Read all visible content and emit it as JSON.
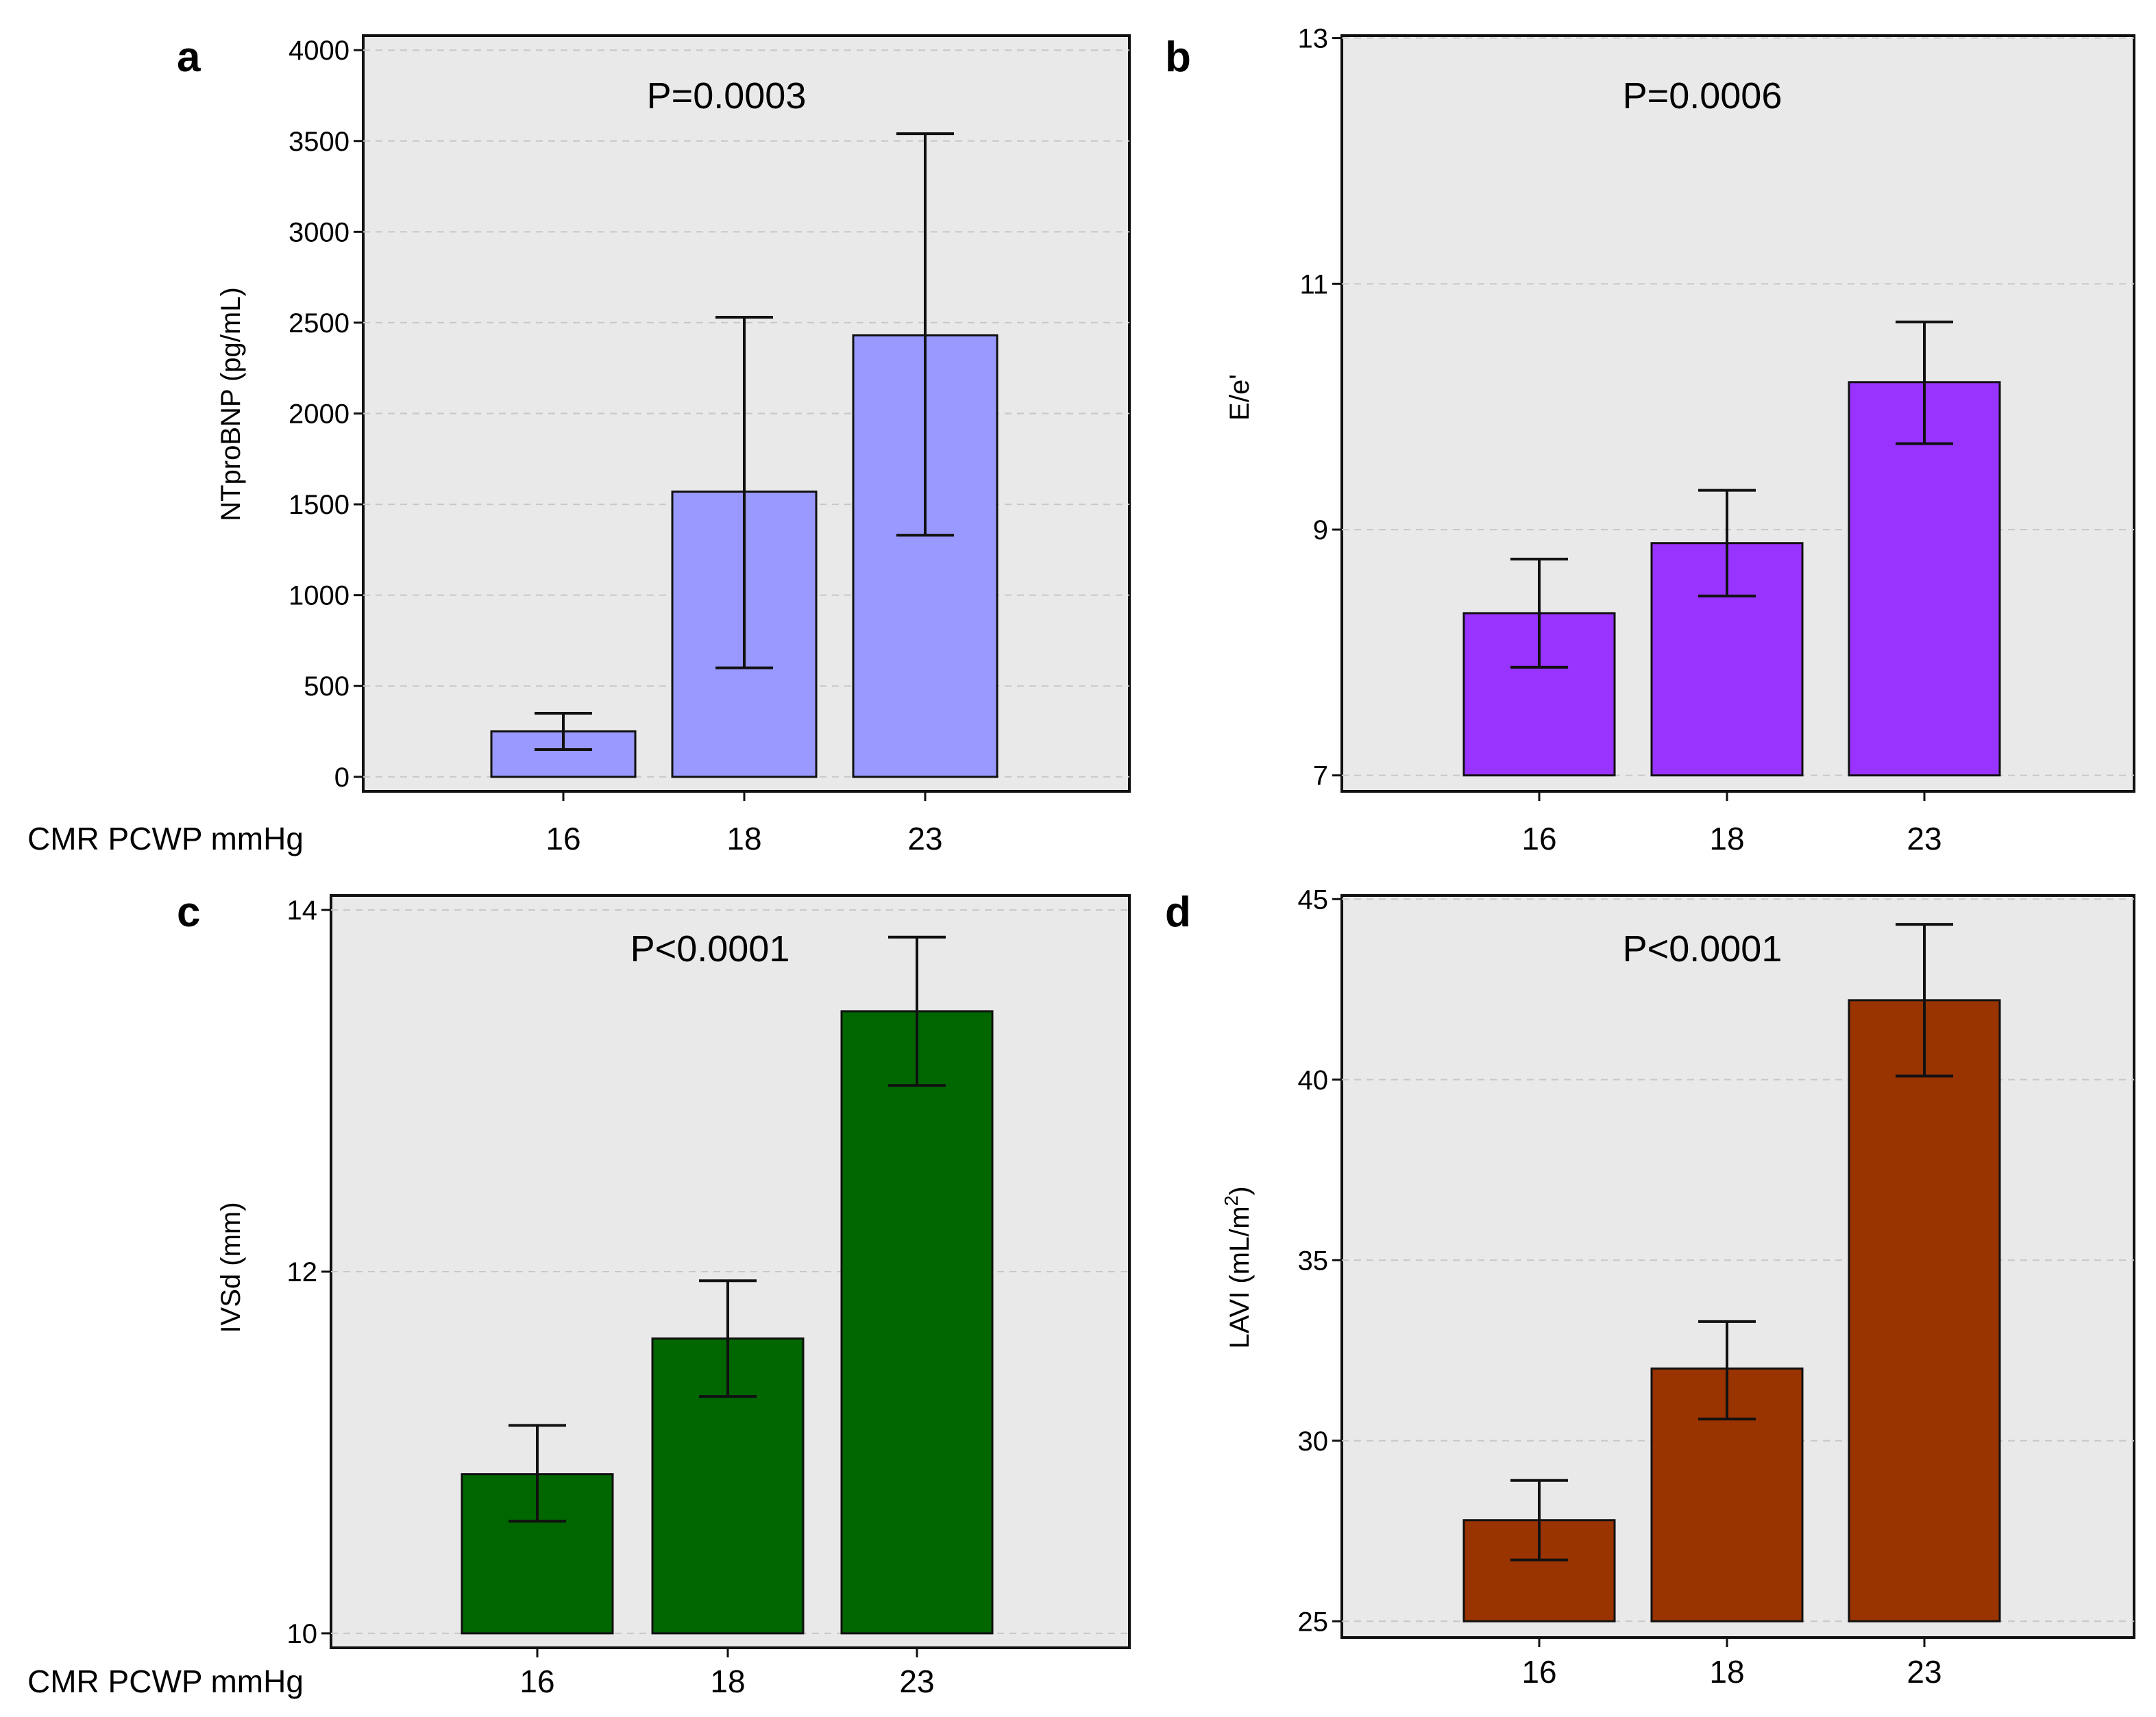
{
  "figure": {
    "xaxis_title": "CMR PCWP mmHg"
  },
  "chart_data": [
    {
      "panel": "a",
      "type": "bar",
      "annotation": "P=0.0003",
      "ylabel": "NTproBNP (pg/mL)",
      "xlabel": "CMR PCWP mmHg",
      "categories": [
        "16",
        "18",
        "23"
      ],
      "values": [
        250,
        1570,
        2430
      ],
      "error_low": [
        150,
        600,
        1330
      ],
      "error_high": [
        350,
        2530,
        3540
      ],
      "ylim": [
        -80,
        4080
      ],
      "yticks": [
        0,
        500,
        1000,
        1500,
        2000,
        2500,
        3000,
        3500,
        4000
      ],
      "ytick_labels": [
        "0",
        "500",
        "1000",
        "1500",
        "2000",
        "2500",
        "3000",
        "3500",
        "4000"
      ],
      "bar_color": "#9999ff",
      "grid": true
    },
    {
      "panel": "b",
      "type": "bar",
      "annotation": "P=0.0006",
      "ylabel": "E/e'",
      "categories": [
        "16",
        "18",
        "23"
      ],
      "values": [
        8.32,
        8.89,
        10.2
      ],
      "error_low": [
        7.88,
        8.46,
        9.7
      ],
      "error_high": [
        8.76,
        9.32,
        10.69
      ],
      "ylim": [
        6.87,
        13.02
      ],
      "yticks": [
        7,
        9,
        11,
        13
      ],
      "ytick_labels": [
        "7",
        "9",
        "11",
        "13"
      ],
      "bar_color": "#9933ff",
      "grid": true
    },
    {
      "panel": "c",
      "type": "bar",
      "annotation": "P<0.0001",
      "ylabel": "IVSd (mm)",
      "xlabel": "CMR PCWP mmHg",
      "categories": [
        "16",
        "18",
        "23"
      ],
      "values": [
        10.88,
        11.63,
        13.44
      ],
      "error_low": [
        10.62,
        11.31,
        13.03
      ],
      "error_high": [
        11.15,
        11.95,
        13.85
      ],
      "ylim": [
        9.92,
        14.08
      ],
      "yticks": [
        10,
        12,
        14
      ],
      "ytick_labels": [
        "10",
        "12",
        "14"
      ],
      "bar_color": "#006600",
      "grid": true
    },
    {
      "panel": "d",
      "type": "bar",
      "annotation": "P<0.0001",
      "ylabel": "LAVI (mL/m",
      "ylabel_sup": "2",
      "ylabel_end": ")",
      "categories": [
        "16",
        "18",
        "23"
      ],
      "values": [
        27.8,
        32.0,
        42.2
      ],
      "error_low": [
        26.7,
        30.6,
        40.1
      ],
      "error_high": [
        28.9,
        33.3,
        44.3
      ],
      "ylim": [
        24.55,
        45.1
      ],
      "yticks": [
        25,
        30,
        35,
        40,
        45
      ],
      "ytick_labels": [
        "25",
        "30",
        "35",
        "40",
        "45"
      ],
      "bar_color": "#993300",
      "grid": true
    }
  ]
}
